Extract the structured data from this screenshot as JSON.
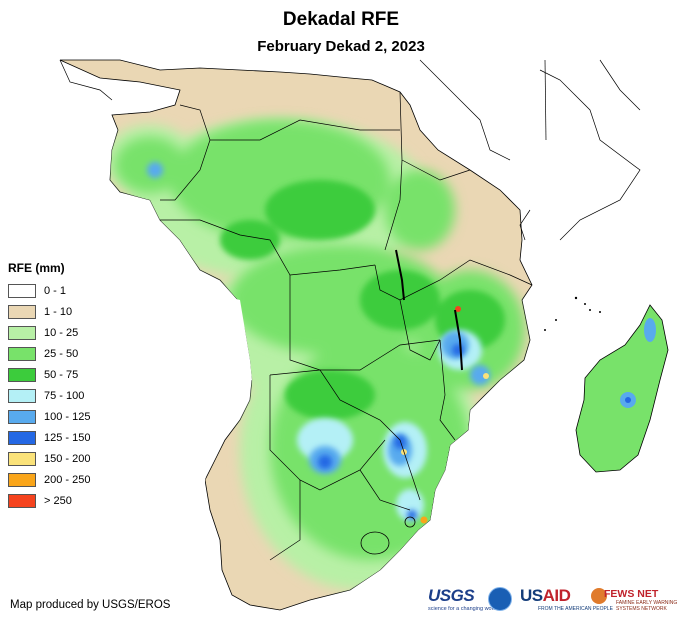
{
  "title": "Dekadal RFE",
  "subtitle": "February Dekad 2, 2023",
  "legend": {
    "title": "RFE (mm)",
    "items": [
      {
        "label": "0 - 1",
        "color": "#ffffff"
      },
      {
        "label": "1 - 10",
        "color": "#ead7b4"
      },
      {
        "label": "10 - 25",
        "color": "#b8f0a6"
      },
      {
        "label": "25 - 50",
        "color": "#78e26a"
      },
      {
        "label": "50 - 75",
        "color": "#3ccc3c"
      },
      {
        "label": "75 - 100",
        "color": "#b4f0f6"
      },
      {
        "label": "100 - 125",
        "color": "#58aaee"
      },
      {
        "label": "125 - 150",
        "color": "#2468e4"
      },
      {
        "label": "150 - 200",
        "color": "#fae27a"
      },
      {
        "label": "200 - 250",
        "color": "#f9a51a"
      },
      {
        "label": "> 250",
        "color": "#f5431e"
      }
    ]
  },
  "credit": "Map produced by USGS/EROS",
  "logos": {
    "usgs": "USGS",
    "usgs_tagline": "science for a changing world",
    "usaid_prefix": "US",
    "usaid_suffix": "AID",
    "usaid_tagline": "FROM THE AMERICAN PEOPLE",
    "fews": "FEWS NET",
    "fews_tagline": "FAMINE EARLY WARNING SYSTEMS NETWORK"
  }
}
